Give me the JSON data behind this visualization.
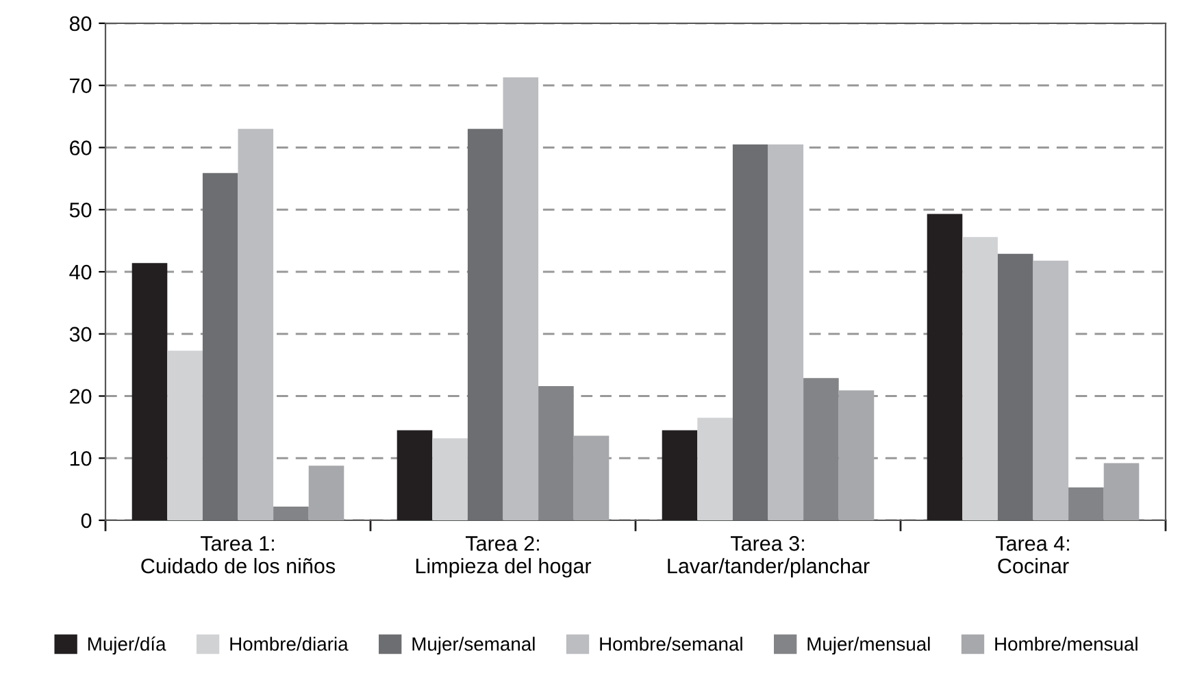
{
  "chart_data": {
    "type": "bar",
    "categories": [
      "Tarea 1:\nCuidado de los niños",
      "Tarea 2:\nLimpieza del hogar",
      "Tarea 3:\nLavar/tander/planchar",
      "Tarea 4:\nCocinar"
    ],
    "series": [
      {
        "name": "Mujer/día",
        "color": "#231f20",
        "values": [
          41.4,
          14.5,
          14.5,
          49.3
        ]
      },
      {
        "name": "Hombre/diaria",
        "color": "#d1d2d4",
        "values": [
          27.3,
          13.2,
          16.5,
          45.6
        ]
      },
      {
        "name": "Mujer/semanal",
        "color": "#6d6e71",
        "values": [
          55.9,
          63,
          60.5,
          42.9
        ]
      },
      {
        "name": "Hombre/semanal",
        "color": "#bcbdc1",
        "values": [
          63,
          71.3,
          60.5,
          41.8
        ]
      },
      {
        "name": "Mujer/mensual",
        "color": "#838487",
        "values": [
          2.2,
          21.6,
          22.9,
          5.3
        ]
      },
      {
        "name": "Hombre/mensual",
        "color": "#a7a8ab",
        "values": [
          8.8,
          13.6,
          20.9,
          9.2
        ]
      }
    ],
    "ylim": [
      0,
      80
    ],
    "yticks": [
      0,
      10,
      20,
      30,
      40,
      50,
      60,
      70,
      80
    ],
    "grid": "y",
    "legend": "bottom"
  }
}
